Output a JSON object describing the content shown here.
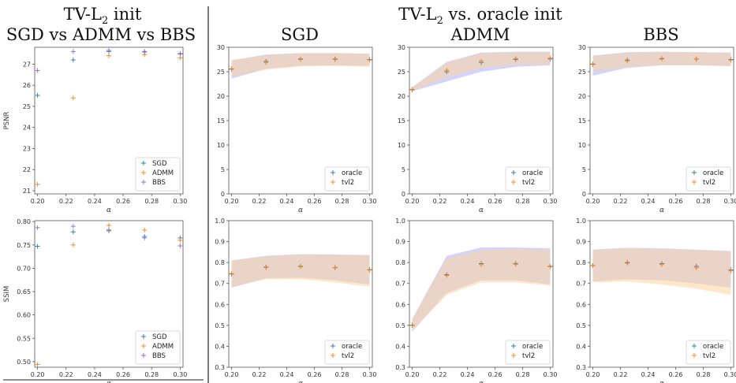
{
  "headings": {
    "left_line1": "TV-L",
    "left_line1_sub": "2",
    "left_line1_end": " init",
    "left_line2": "SGD vs ADMM vs BBS",
    "right_line1": "TV-L",
    "right_line1_sub": "2",
    "right_line1_end": " vs. oracle init",
    "col_sgd": "SGD",
    "col_admm": "ADMM",
    "col_bbs": "BBS"
  },
  "chart_data": [
    {
      "id": "compare-psnr",
      "type": "scatter",
      "xlabel": "α",
      "ylabel": "PSNR",
      "xlim": [
        0.198,
        0.302
      ],
      "ylim": [
        20.85,
        27.8
      ],
      "xticks": [
        "0.20",
        "0.22",
        "0.24",
        "0.26",
        "0.28",
        "0.30"
      ],
      "yticks": [
        "21",
        "22",
        "23",
        "24",
        "25",
        "26",
        "27"
      ],
      "legend_position": "lower-right",
      "series": [
        {
          "name": "SGD",
          "color": "#1f77b4",
          "points": [
            [
              0.2,
              25.52
            ],
            [
              0.225,
              27.2
            ],
            [
              0.25,
              27.6
            ],
            [
              0.275,
              27.58
            ],
            [
              0.3,
              27.48
            ]
          ]
        },
        {
          "name": "ADMM",
          "color": "#ff7f0e",
          "points": [
            [
              0.2,
              21.3
            ],
            [
              0.225,
              25.4
            ],
            [
              0.25,
              27.4
            ],
            [
              0.275,
              27.45
            ],
            [
              0.3,
              27.3
            ]
          ]
        },
        {
          "name": "BBS",
          "color": "#9467bd",
          "points": [
            [
              0.2,
              26.7
            ],
            [
              0.225,
              27.6
            ],
            [
              0.25,
              27.65
            ],
            [
              0.275,
              27.6
            ],
            [
              0.3,
              27.5
            ]
          ]
        }
      ]
    },
    {
      "id": "compare-ssim",
      "type": "scatter",
      "xlabel": "α",
      "ylabel": "SSIM",
      "xlim": [
        0.198,
        0.302
      ],
      "ylim": [
        0.488,
        0.802
      ],
      "xticks": [
        "0.20",
        "0.22",
        "0.24",
        "0.26",
        "0.28",
        "0.30"
      ],
      "yticks": [
        "0.50",
        "0.55",
        "0.60",
        "0.65",
        "0.70",
        "0.75",
        "0.80"
      ],
      "legend_position": "lower-right",
      "series": [
        {
          "name": "SGD",
          "color": "#1f77b4",
          "points": [
            [
              0.2,
              0.747
            ],
            [
              0.225,
              0.778
            ],
            [
              0.25,
              0.782
            ],
            [
              0.275,
              0.768
            ],
            [
              0.3,
              0.765
            ]
          ]
        },
        {
          "name": "ADMM",
          "color": "#ff7f0e",
          "points": [
            [
              0.2,
              0.494
            ],
            [
              0.225,
              0.75
            ],
            [
              0.25,
              0.792
            ],
            [
              0.275,
              0.782
            ],
            [
              0.3,
              0.76
            ]
          ]
        },
        {
          "name": "BBS",
          "color": "#9467bd",
          "points": [
            [
              0.2,
              0.787
            ],
            [
              0.225,
              0.79
            ],
            [
              0.25,
              0.78
            ],
            [
              0.275,
              0.765
            ],
            [
              0.3,
              0.748
            ]
          ]
        }
      ]
    },
    {
      "id": "sgd-psnr",
      "type": "area",
      "xlabel": "α",
      "ylabel": "",
      "xlim": [
        0.198,
        0.302
      ],
      "ylim": [
        0,
        30
      ],
      "xticks": [
        "0.20",
        "0.22",
        "0.24",
        "0.26",
        "0.28",
        "0.30"
      ],
      "yticks": [
        "0",
        "5",
        "10",
        "15",
        "20",
        "25",
        "30"
      ],
      "legend_position": "lower-right",
      "x": [
        0.2,
        0.225,
        0.25,
        0.275,
        0.3
      ],
      "series": [
        {
          "name": "oracle",
          "color": "#1f77b4",
          "band_color": "#aab0ff",
          "mean": [
            25.5,
            27.1,
            27.6,
            27.6,
            27.5
          ],
          "lower": [
            23.6,
            25.6,
            26.2,
            26.3,
            26.2
          ],
          "upper": [
            27.3,
            28.5,
            28.8,
            28.8,
            28.7
          ]
        },
        {
          "name": "tvl2",
          "color": "#ff7f0e",
          "band_color": "#ffd49a",
          "mean": [
            25.6,
            26.9,
            27.5,
            27.5,
            27.4
          ],
          "lower": [
            24.0,
            25.4,
            26.1,
            26.2,
            26.0
          ],
          "upper": [
            27.4,
            28.4,
            28.8,
            28.8,
            28.7
          ]
        }
      ]
    },
    {
      "id": "admm-psnr",
      "type": "area",
      "xlabel": "α",
      "ylabel": "",
      "xlim": [
        0.198,
        0.302
      ],
      "ylim": [
        0,
        30
      ],
      "xticks": [
        "0.20",
        "0.22",
        "0.24",
        "0.26",
        "0.28",
        "0.30"
      ],
      "yticks": [
        "0",
        "5",
        "10",
        "15",
        "20",
        "25",
        "30"
      ],
      "legend_position": "lower-right",
      "x": [
        0.2,
        0.225,
        0.25,
        0.275,
        0.3
      ],
      "series": [
        {
          "name": "oracle",
          "color": "#1f77b4",
          "band_color": "#aab0ff",
          "mean": [
            21.3,
            25.0,
            26.9,
            27.5,
            27.6
          ],
          "lower": [
            21.0,
            23.0,
            25.0,
            26.0,
            26.3
          ],
          "upper": [
            21.8,
            27.0,
            28.9,
            29.1,
            29.1
          ]
        },
        {
          "name": "tvl2",
          "color": "#ff7f0e",
          "band_color": "#ffd49a",
          "mean": [
            21.4,
            25.3,
            27.2,
            27.7,
            27.8
          ],
          "lower": [
            21.1,
            23.8,
            25.7,
            26.4,
            26.4
          ],
          "upper": [
            21.7,
            26.8,
            28.8,
            29.0,
            29.0
          ]
        }
      ]
    },
    {
      "id": "bbs-psnr",
      "type": "area",
      "xlabel": "α",
      "ylabel": "",
      "xlim": [
        0.198,
        0.302
      ],
      "ylim": [
        0,
        30
      ],
      "xticks": [
        "0.20",
        "0.22",
        "0.24",
        "0.26",
        "0.28",
        "0.30"
      ],
      "yticks": [
        "0",
        "5",
        "10",
        "15",
        "20",
        "25",
        "30"
      ],
      "legend_position": "lower-right",
      "x": [
        0.2,
        0.225,
        0.25,
        0.275,
        0.3
      ],
      "series": [
        {
          "name": "oracle",
          "color": "#1f77b4",
          "band_color": "#aab0ff",
          "mean": [
            26.5,
            27.4,
            27.7,
            27.6,
            27.5
          ],
          "lower": [
            24.2,
            25.8,
            26.3,
            26.3,
            26.2
          ],
          "upper": [
            28.3,
            29.0,
            29.1,
            29.0,
            28.9
          ]
        },
        {
          "name": "tvl2",
          "color": "#ff7f0e",
          "band_color": "#ffd49a",
          "mean": [
            26.6,
            27.2,
            27.6,
            27.6,
            27.4
          ],
          "lower": [
            25.0,
            25.9,
            26.3,
            26.3,
            26.1
          ],
          "upper": [
            28.2,
            28.9,
            29.0,
            29.0,
            28.8
          ]
        }
      ]
    },
    {
      "id": "sgd-ssim",
      "type": "area",
      "xlabel": "α",
      "ylabel": "",
      "xlim": [
        0.198,
        0.302
      ],
      "ylim": [
        0.3,
        1.0
      ],
      "xticks": [
        "0.20",
        "0.22",
        "0.24",
        "0.26",
        "0.28",
        "0.30"
      ],
      "yticks": [
        "0.3",
        "0.4",
        "0.5",
        "0.6",
        "0.7",
        "0.8",
        "0.9",
        "1.0"
      ],
      "legend_position": "lower-right",
      "x": [
        0.2,
        0.225,
        0.25,
        0.275,
        0.3
      ],
      "series": [
        {
          "name": "oracle",
          "color": "#1f77b4",
          "band_color": "#aab0ff",
          "mean": [
            0.745,
            0.778,
            0.782,
            0.776,
            0.766
          ],
          "lower": [
            0.68,
            0.725,
            0.728,
            0.715,
            0.695
          ],
          "upper": [
            0.81,
            0.832,
            0.84,
            0.838,
            0.836
          ]
        },
        {
          "name": "tvl2",
          "color": "#ff7f0e",
          "band_color": "#ffd49a",
          "mean": [
            0.747,
            0.776,
            0.78,
            0.775,
            0.764
          ],
          "lower": [
            0.685,
            0.72,
            0.72,
            0.705,
            0.685
          ],
          "upper": [
            0.81,
            0.83,
            0.838,
            0.836,
            0.834
          ]
        }
      ]
    },
    {
      "id": "admm-ssim",
      "type": "area",
      "xlabel": "α",
      "ylabel": "",
      "xlim": [
        0.198,
        0.302
      ],
      "ylim": [
        0.3,
        1.0
      ],
      "xticks": [
        "0.20",
        "0.22",
        "0.24",
        "0.26",
        "0.28",
        "0.30"
      ],
      "yticks": [
        "0.3",
        "0.4",
        "0.5",
        "0.6",
        "0.7",
        "0.8",
        "0.9",
        "1.0"
      ],
      "legend_position": "lower-right",
      "x": [
        0.2,
        0.225,
        0.25,
        0.275,
        0.3
      ],
      "series": [
        {
          "name": "oracle",
          "color": "#1f77b4",
          "band_color": "#aab0ff",
          "mean": [
            0.5,
            0.742,
            0.795,
            0.795,
            0.782
          ],
          "lower": [
            0.47,
            0.655,
            0.715,
            0.715,
            0.695
          ],
          "upper": [
            0.53,
            0.832,
            0.872,
            0.872,
            0.868
          ]
        },
        {
          "name": "tvl2",
          "color": "#ff7f0e",
          "band_color": "#ffd49a",
          "mean": [
            0.502,
            0.738,
            0.79,
            0.792,
            0.78
          ],
          "lower": [
            0.475,
            0.645,
            0.705,
            0.705,
            0.69
          ],
          "upper": [
            0.53,
            0.82,
            0.86,
            0.865,
            0.86
          ]
        }
      ]
    },
    {
      "id": "bbs-ssim",
      "type": "area",
      "xlabel": "α",
      "ylabel": "",
      "xlim": [
        0.198,
        0.302
      ],
      "ylim": [
        0.3,
        1.0
      ],
      "xticks": [
        "0.20",
        "0.22",
        "0.24",
        "0.26",
        "0.28",
        "0.30"
      ],
      "yticks": [
        "0.3",
        "0.4",
        "0.5",
        "0.6",
        "0.7",
        "0.8",
        "0.9",
        "1.0"
      ],
      "legend_position": "lower-right",
      "x": [
        0.2,
        0.225,
        0.25,
        0.275,
        0.3
      ],
      "series": [
        {
          "name": "oracle",
          "color": "#1f77b4",
          "band_color": "#aab0ff",
          "mean": [
            0.786,
            0.8,
            0.795,
            0.782,
            0.765
          ],
          "lower": [
            0.71,
            0.72,
            0.715,
            0.7,
            0.68
          ],
          "upper": [
            0.862,
            0.87,
            0.868,
            0.862,
            0.855
          ]
        },
        {
          "name": "tvl2",
          "color": "#ff7f0e",
          "band_color": "#ffd49a",
          "mean": [
            0.785,
            0.797,
            0.79,
            0.775,
            0.76
          ],
          "lower": [
            0.705,
            0.71,
            0.695,
            0.675,
            0.645
          ],
          "upper": [
            0.86,
            0.868,
            0.865,
            0.86,
            0.852
          ]
        }
      ]
    }
  ]
}
